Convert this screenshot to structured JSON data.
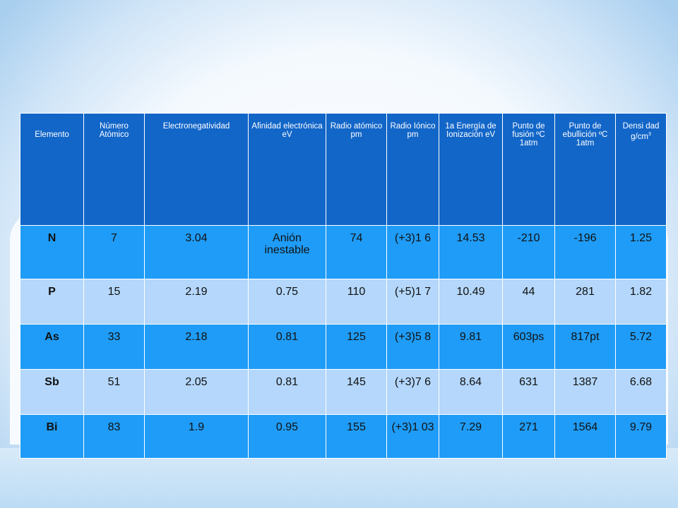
{
  "table": {
    "headers": [
      "Elemento",
      "Número Atómico",
      "Electronegatividad",
      "Afinidad electrónica eV",
      "Radio atómico pm",
      "Radio Iónico pm",
      "1a Energía de Ionización eV",
      "Punto de fusión ºC 1atm",
      "Punto de ebullición ºC 1atm",
      "Densi dad g/cm"
    ],
    "density_superscript": "3",
    "rows": [
      [
        "N",
        "7",
        "3.04",
        "Anión inestable",
        "74",
        "(+3)1 6",
        "14.53",
        "-210",
        "-196",
        "1.25"
      ],
      [
        "P",
        "15",
        "2.19",
        "0.75",
        "110",
        "(+5)1 7",
        "10.49",
        "44",
        "281",
        "1.82"
      ],
      [
        "As",
        "33",
        "2.18",
        "0.81",
        "125",
        "(+3)5 8",
        "9.81",
        "603ps",
        "817pt",
        "5.72"
      ],
      [
        "Sb",
        "51",
        "2.05",
        "0.81",
        "145",
        "(+3)7 6",
        "8.64",
        "631",
        "1387",
        "6.68"
      ],
      [
        "Bi",
        "83",
        "1.9",
        "0.95",
        "155",
        "(+3)1 03",
        "7.29",
        "271",
        "1564",
        "9.79"
      ]
    ]
  },
  "colors": {
    "header_bg": "#1266c8",
    "row_dark": "#1f9cf7",
    "row_light": "#b4d7fb",
    "slide_border": "#a8cdee"
  }
}
